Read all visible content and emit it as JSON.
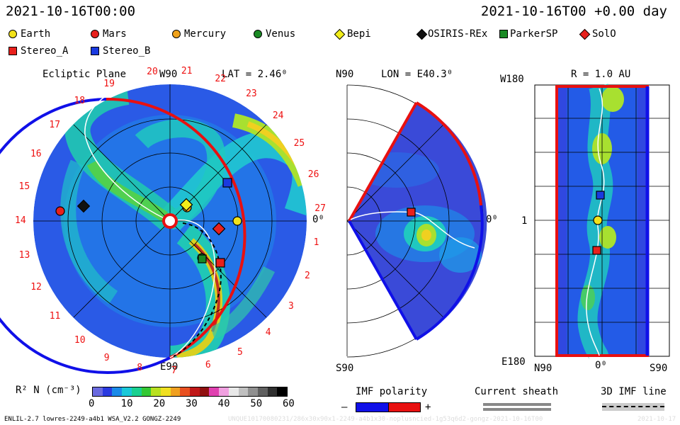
{
  "header": {
    "left_time": "2021-10-16T00:00",
    "right_time": "2021-10-16T00 +0.00 day"
  },
  "legend": {
    "items": [
      {
        "label": "Earth",
        "shape": "circle",
        "color": "#f2e21a"
      },
      {
        "label": "Mars",
        "shape": "circle",
        "color": "#e8201c"
      },
      {
        "label": "Mercury",
        "shape": "circle",
        "color": "#f0a21a"
      },
      {
        "label": "Venus",
        "shape": "circle",
        "color": "#1a8a24"
      },
      {
        "label": "Bepi",
        "shape": "diamond",
        "color": "#f2ee1a"
      },
      {
        "label": "OSIRIS-REx",
        "shape": "diamond",
        "color": "#111111"
      },
      {
        "label": "ParkerSP",
        "shape": "square",
        "color": "#1a8a24"
      },
      {
        "label": "SolO",
        "shape": "diamond",
        "color": "#e8201c"
      },
      {
        "label": "Stereo_A",
        "shape": "square",
        "color": "#e8201c"
      },
      {
        "label": "Stereo_B",
        "shape": "square",
        "color": "#1a3ae0"
      }
    ]
  },
  "ecliptic_panel": {
    "title": "Ecliptic Plane",
    "top_label": "W90",
    "lat_label": "LAT = 2.46⁰",
    "bottom_label": "E90",
    "right_label": "0⁰",
    "carrington_rotation_numbers": [
      "20",
      "21",
      "22",
      "23",
      "24",
      "25",
      "26",
      "27",
      "1",
      "2",
      "3",
      "4",
      "5",
      "6",
      "7",
      "8",
      "9",
      "10",
      "11",
      "12",
      "13",
      "14",
      "15",
      "16",
      "17",
      "18",
      "19"
    ]
  },
  "meridional_panel": {
    "top_left": "N90",
    "lon_label": "LON = E40.3⁰",
    "bottom_left": "S90",
    "right_label": "0⁰"
  },
  "radial_panel": {
    "r_label": "R = 1.0 AU",
    "top_left": "W180",
    "mid_left": "1",
    "bottom_left": "E180",
    "bottom_n": "N90",
    "bottom_center": "0⁰",
    "bottom_s": "S90"
  },
  "colorbar": {
    "label": "R² N (cm⁻³)",
    "ticks": [
      "0",
      "10",
      "20",
      "30",
      "40",
      "50",
      "60"
    ],
    "colors": [
      "#6a6ae0",
      "#2a3ae0",
      "#1a8ae8",
      "#19c8d8",
      "#19d090",
      "#34c834",
      "#b8e020",
      "#f0e020",
      "#f0a020",
      "#e85020",
      "#c01818",
      "#901010",
      "#e040b0",
      "#f0a0e0",
      "#e8e8e8",
      "#c0c0c0",
      "#909090",
      "#606060",
      "#303030",
      "#000000"
    ]
  },
  "imf_polarity": {
    "label": "IMF polarity",
    "minus": "–",
    "plus": "+",
    "neg_color": "#1010e8",
    "pos_color": "#e81010"
  },
  "current_sheath": {
    "label": "Current sheath"
  },
  "imf_line": {
    "label": "3D IMF line"
  },
  "footer": {
    "left": "ENLIL-2.7 lowres-2249-a4b1 WSA_V2.2 GONGZ-2249",
    "right": "UNQUE10170080231/286x30x90x1-2249-a4b1x30-noplusncied-1g53q6d2-gongz-2021-10-16T00",
    "far_right": "2021-10-17"
  }
}
